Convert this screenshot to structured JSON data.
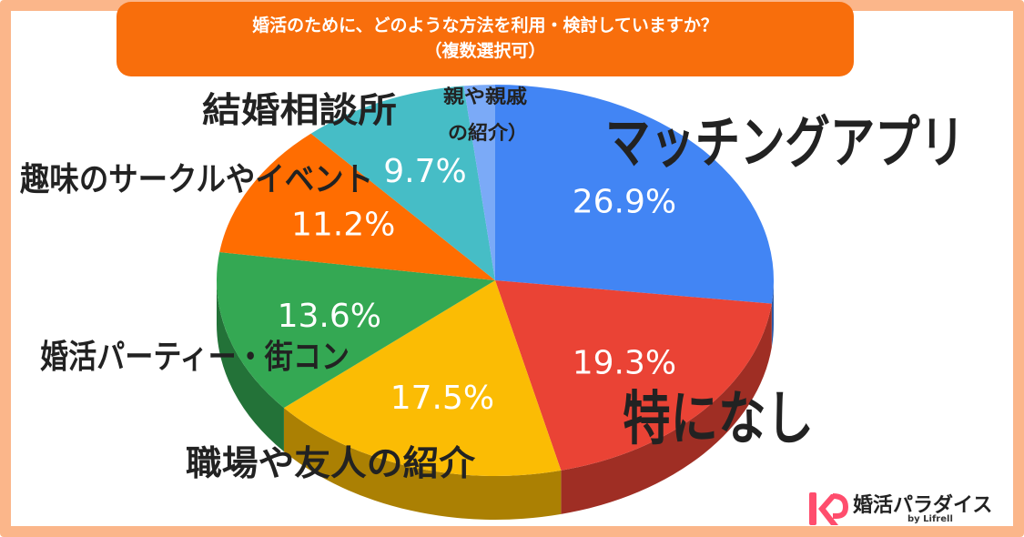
{
  "header": {
    "title_line1": "婚活のために、どのような方法を利用・検討していますか？",
    "title_line2": "（複数選択可）"
  },
  "colors": {
    "frame": "#fbb68a",
    "title_bg": "#f86e0c",
    "matching_app": "#4285f4",
    "none": "#ea4335",
    "workplace_friends": "#fbbc04",
    "party": "#34a853",
    "hobby": "#ff6d01",
    "agency": "#46bdc6",
    "relatives": "#7baaf7"
  },
  "chart_data": {
    "type": "pie",
    "style": "3d",
    "series": [
      {
        "name": "マッチングアプリ",
        "value": 26.9,
        "value_label": "26.9%",
        "color": "#4285f4"
      },
      {
        "name": "特になし",
        "value": 19.3,
        "value_label": "19.3%",
        "color": "#ea4335"
      },
      {
        "name": "職場や友人の紹介",
        "value": 17.5,
        "value_label": "17.5%",
        "color": "#fbbc04"
      },
      {
        "name": "婚活パーティー・街コン",
        "value": 13.6,
        "value_label": "13.6%",
        "color": "#34a853"
      },
      {
        "name": "趣味のサークルやイベント",
        "value": 11.2,
        "value_label": "11.2%",
        "color": "#ff6d01"
      },
      {
        "name": "結婚相談所",
        "value": 9.7,
        "value_label": "9.7%",
        "color": "#46bdc6"
      },
      {
        "name": "親や親戚の紹介）",
        "value": 1.8,
        "value_label": "",
        "color": "#7baaf7"
      }
    ],
    "category_labels": {
      "matching_app": "マッチングアプリ",
      "none": "特になし",
      "workplace_friends": "職場や友人の紹介",
      "party": "婚活パーティー・街コン",
      "hobby": "趣味のサークルやイベント",
      "agency": "結婚相談所",
      "relatives_line1": "親や親戚",
      "relatives_line2": "の紹介）"
    }
  },
  "logo": {
    "name": "婚活パラダイス",
    "byline": "by Lifrell"
  }
}
